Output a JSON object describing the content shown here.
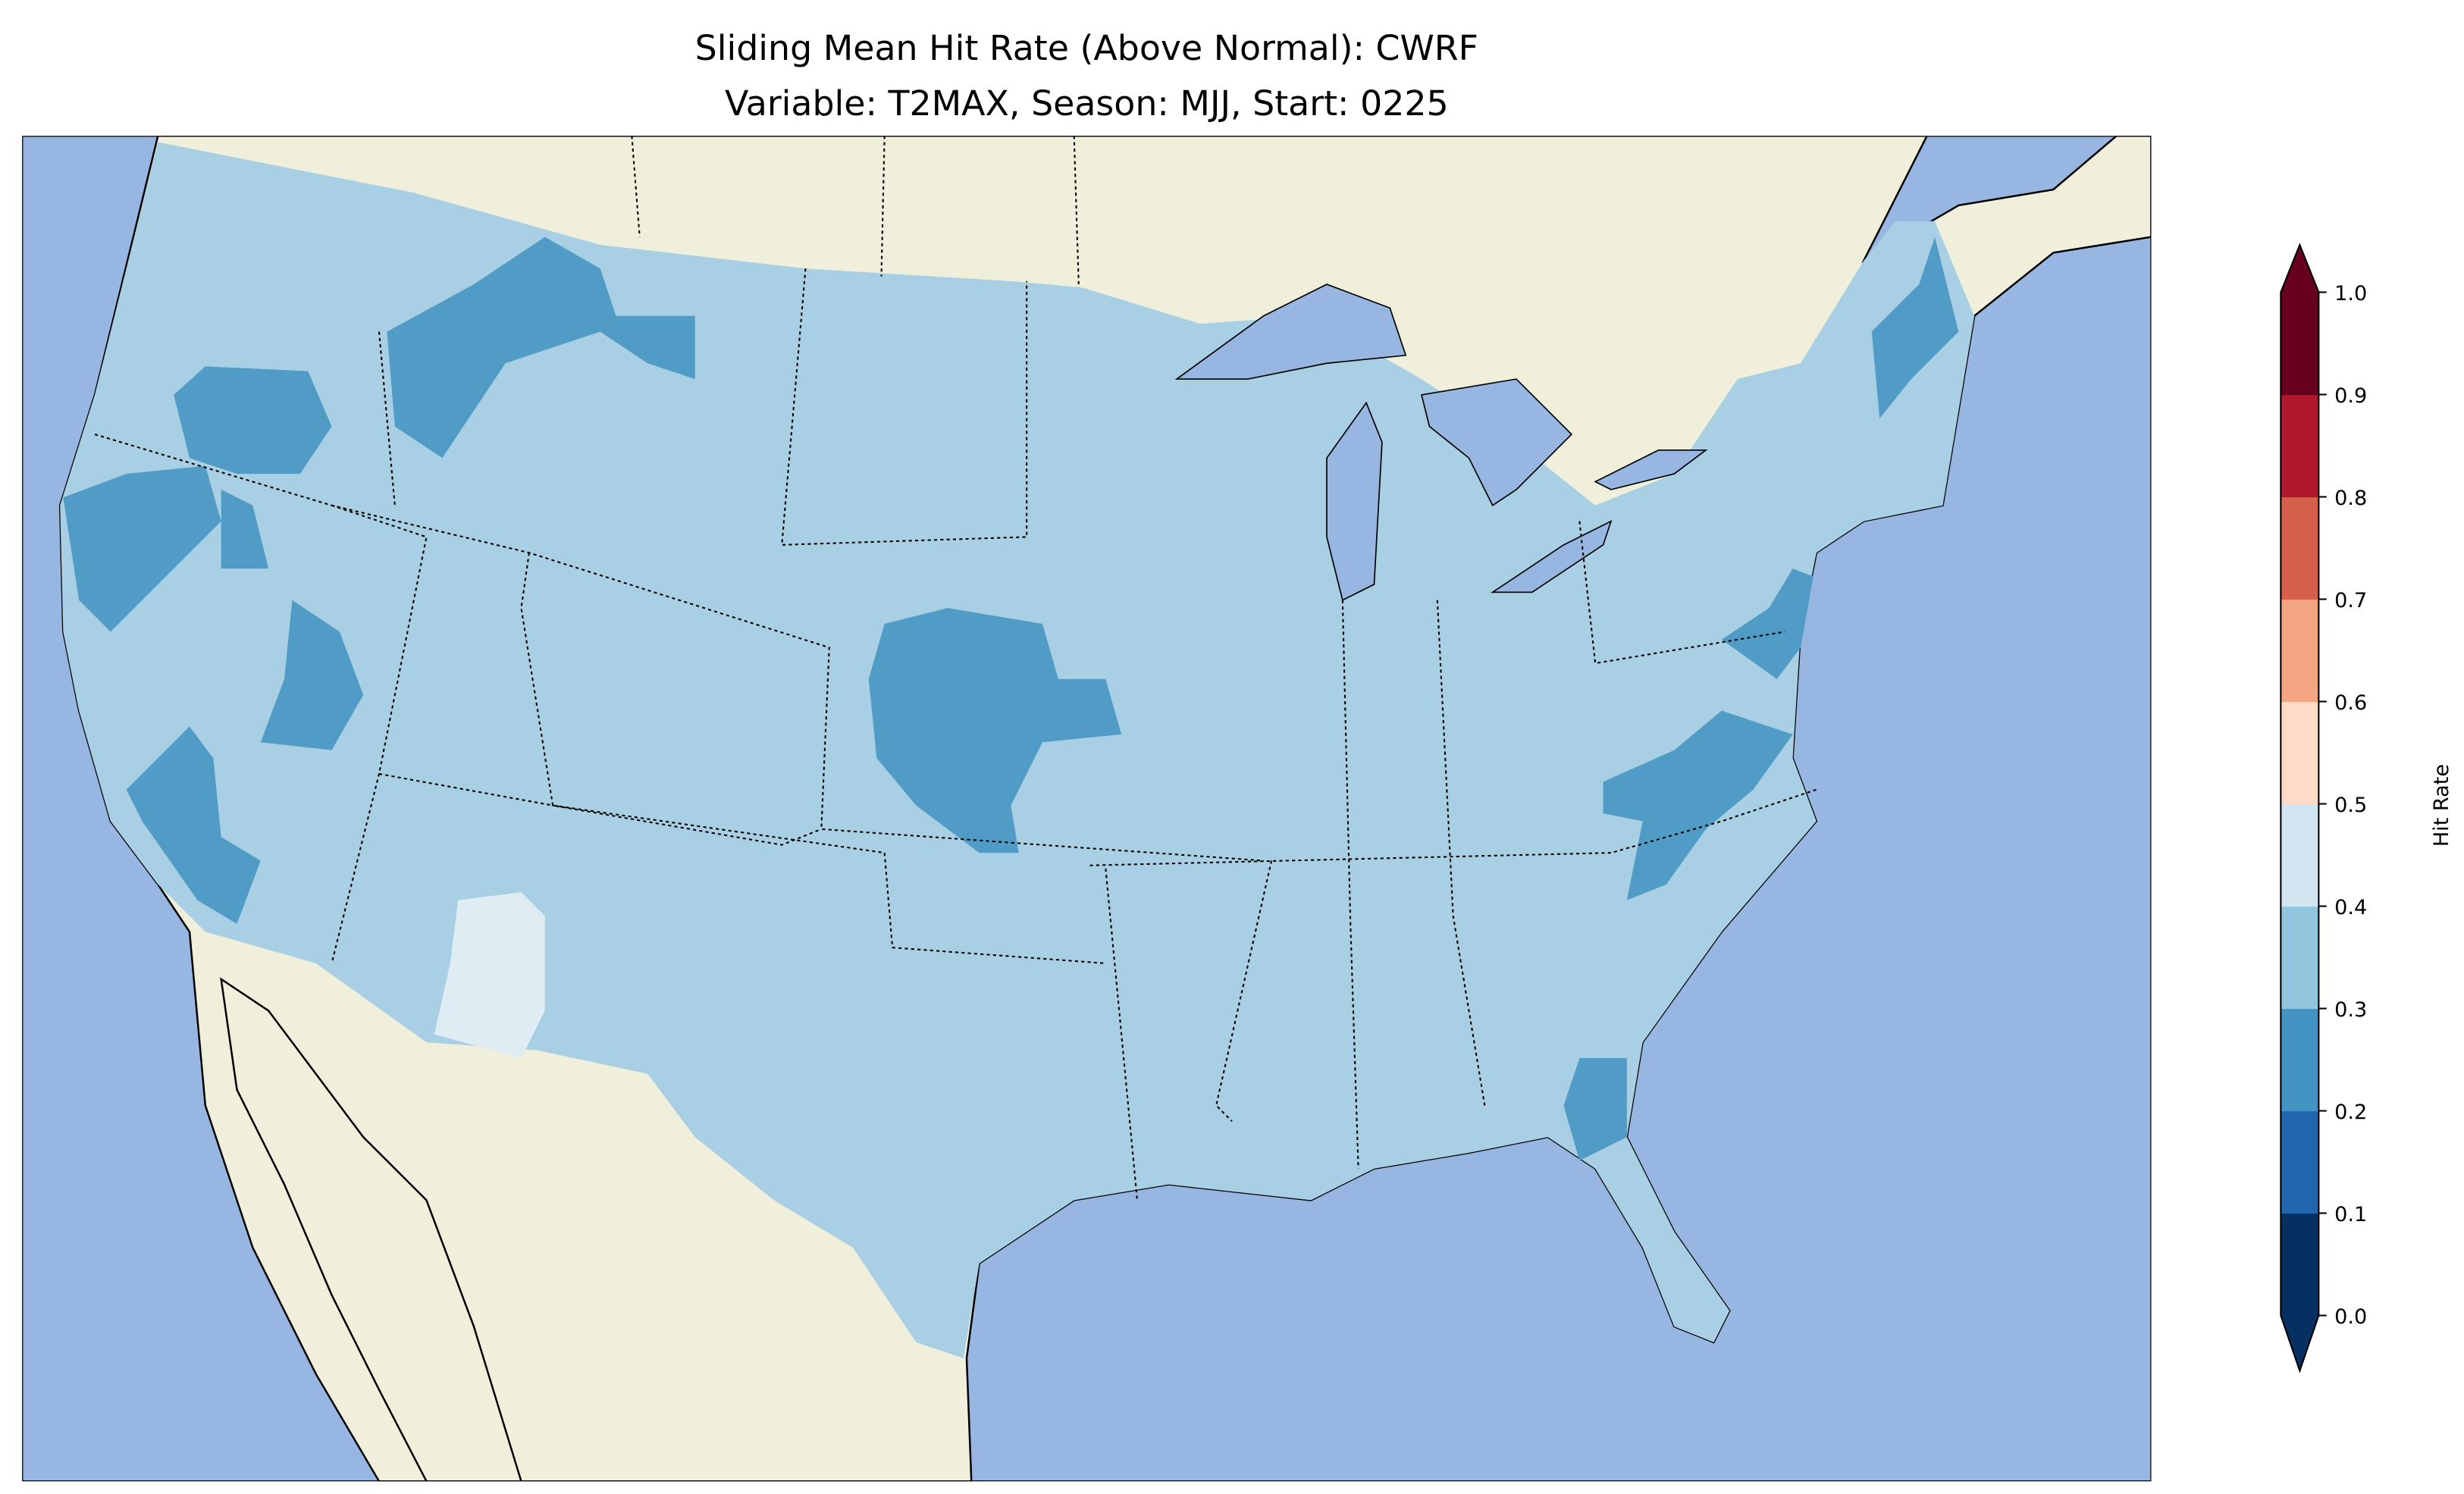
{
  "chart_data": {
    "type": "heatmap",
    "title": "Sliding Mean Hit Rate (Above Normal): CWRF",
    "subtitle": "Variable: T2MAX, Season: MJJ, Start: 0225",
    "colorbar": {
      "label": "Hit Rate",
      "ticks": [
        "0.0",
        "0.1",
        "0.2",
        "0.3",
        "0.4",
        "0.5",
        "0.6",
        "0.7",
        "0.8",
        "0.9",
        "1.0"
      ],
      "levels": [
        0.0,
        0.1,
        0.2,
        0.3,
        0.4,
        0.5,
        0.6,
        0.7,
        0.8,
        0.9,
        1.0
      ],
      "colors": [
        "#053061",
        "#2166ac",
        "#4393c3",
        "#92c5de",
        "#d1e5f0",
        "#fddbc7",
        "#f4a582",
        "#d6604d",
        "#b2182b",
        "#67001f"
      ],
      "extend": "both",
      "range": [
        0.0,
        1.0
      ]
    },
    "map": {
      "region": "Contiguous United States",
      "dominant_range": [
        0.3,
        0.4
      ],
      "colors": {
        "ocean": "#97b6e1",
        "land": "#efefdb",
        "bin_0_3_0_4": "#a8cfe3",
        "bin_0_2_0_3": "#519bc7",
        "bin_0_4_0_5": "#e0ecf3"
      }
    }
  }
}
